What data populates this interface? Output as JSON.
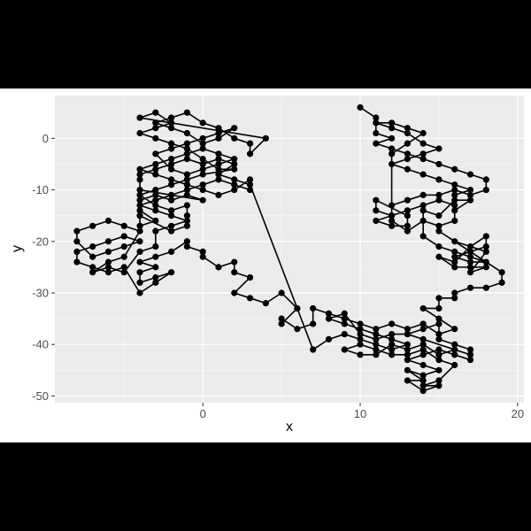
{
  "colors": {
    "panel": "#ebebeb",
    "grid_major": "#ffffff",
    "grid_minor": "#f5f5f5",
    "mark": "#000000",
    "tick_text": "#4d4d4d"
  },
  "chart_data": {
    "type": "line",
    "xlabel": "x",
    "ylabel": "y",
    "xlim": [
      -9.4,
      20.4
    ],
    "ylim": [
      -51.3,
      8.3
    ],
    "x_ticks": [
      0,
      10,
      20
    ],
    "y_ticks": [
      0,
      -10,
      -20,
      -30,
      -40,
      -50
    ],
    "x_tick_labels": [
      "0",
      "10",
      "20"
    ],
    "y_tick_labels": [
      "0",
      "-10",
      "-20",
      "-30",
      "-40",
      "-50"
    ],
    "markers": true,
    "grid": true,
    "legend": "none",
    "series": [
      {
        "values": [
          [
            10,
            6
          ],
          [
            11,
            4
          ],
          [
            11,
            1
          ],
          [
            12,
            0
          ],
          [
            11,
            -1
          ],
          [
            12,
            -2
          ],
          [
            13,
            -3
          ],
          [
            14,
            -4
          ],
          [
            15,
            -5
          ],
          [
            16,
            -6
          ],
          [
            17,
            -7
          ],
          [
            18,
            -8
          ],
          [
            18,
            -10
          ],
          [
            17,
            -11
          ],
          [
            16,
            -10
          ],
          [
            15,
            -11
          ],
          [
            14,
            -11
          ],
          [
            13,
            -12
          ],
          [
            12,
            -13
          ],
          [
            12,
            -15
          ],
          [
            11,
            -16
          ],
          [
            12,
            -17
          ],
          [
            13,
            -17
          ],
          [
            13,
            -15
          ],
          [
            11,
            -12
          ],
          [
            11,
            -14
          ],
          [
            12,
            -15
          ],
          [
            13,
            -14
          ],
          [
            14,
            -13
          ],
          [
            15,
            -12
          ],
          [
            16,
            -13
          ],
          [
            16,
            -11
          ],
          [
            17,
            -10
          ],
          [
            16,
            -9
          ],
          [
            15,
            -8
          ],
          [
            14,
            -7
          ],
          [
            13,
            -6
          ],
          [
            12,
            -5
          ],
          [
            13,
            -4
          ],
          [
            14,
            -3
          ],
          [
            15,
            -2
          ],
          [
            14,
            -1
          ],
          [
            13,
            1
          ],
          [
            12,
            2
          ],
          [
            11,
            3
          ],
          [
            12,
            3
          ],
          [
            13,
            2
          ],
          [
            14,
            1
          ],
          [
            13,
            -1
          ],
          [
            12,
            -3
          ],
          [
            12,
            -16
          ],
          [
            13,
            -18
          ],
          [
            14,
            -16
          ],
          [
            15,
            -17
          ],
          [
            16,
            -16
          ],
          [
            16,
            -14
          ],
          [
            17,
            -12
          ],
          [
            16,
            -12
          ],
          [
            15,
            -15
          ],
          [
            14,
            -14
          ],
          [
            14,
            -19
          ],
          [
            15,
            -21
          ],
          [
            16,
            -22
          ],
          [
            17,
            -23
          ],
          [
            18,
            -24
          ],
          [
            17,
            -24
          ],
          [
            16,
            -23
          ],
          [
            17,
            -22
          ],
          [
            18,
            -21
          ],
          [
            18,
            -19
          ],
          [
            17,
            -21
          ],
          [
            16,
            -24
          ],
          [
            15,
            -23
          ],
          [
            16,
            -25
          ],
          [
            17,
            -25
          ],
          [
            18,
            -25
          ],
          [
            17,
            -26
          ],
          [
            18,
            -22
          ],
          [
            16,
            -20
          ],
          [
            15,
            -18
          ],
          [
            19,
            -26
          ],
          [
            19,
            -28
          ],
          [
            18,
            -29
          ],
          [
            17,
            -29
          ],
          [
            16,
            -30
          ],
          [
            16,
            -31
          ],
          [
            15,
            -31
          ],
          [
            15,
            -33
          ],
          [
            14,
            -33
          ],
          [
            15,
            -35
          ],
          [
            16,
            -37
          ],
          [
            15,
            -38
          ],
          [
            14,
            -36
          ],
          [
            13,
            -37
          ],
          [
            12,
            -36
          ],
          [
            11,
            -37
          ],
          [
            10,
            -36
          ],
          [
            9,
            -35
          ],
          [
            8,
            -34
          ],
          [
            7,
            -33
          ],
          [
            7,
            -36
          ],
          [
            6,
            -37
          ],
          [
            5,
            -35
          ],
          [
            5,
            -36
          ],
          [
            6,
            -33
          ],
          [
            5,
            -30
          ],
          [
            4,
            -32
          ],
          [
            3,
            -31
          ],
          [
            2,
            -30
          ],
          [
            3,
            -27
          ],
          [
            2,
            -26
          ],
          [
            2,
            -24
          ],
          [
            1,
            -25
          ],
          [
            0,
            -23
          ],
          [
            0,
            -22
          ],
          [
            -1,
            -21
          ],
          [
            -1,
            -20
          ],
          [
            -2,
            -22
          ],
          [
            -3,
            -23
          ],
          [
            -4,
            -24
          ],
          [
            -3,
            -25
          ],
          [
            -4,
            -26
          ],
          [
            -4,
            -28
          ],
          [
            -3,
            -27
          ],
          [
            -2,
            -26
          ],
          [
            -3,
            -28
          ],
          [
            -4,
            -30
          ],
          [
            -5,
            -25
          ],
          [
            -6,
            -26
          ],
          [
            -7,
            -25
          ],
          [
            -8,
            -24
          ],
          [
            -8,
            -22
          ],
          [
            -7,
            -21
          ],
          [
            -6,
            -20
          ],
          [
            -5,
            -19
          ],
          [
            -4,
            -20
          ],
          [
            -5,
            -21
          ],
          [
            -6,
            -22
          ],
          [
            -7,
            -23
          ],
          [
            -8,
            -20
          ],
          [
            -8,
            -18
          ],
          [
            -7,
            -17
          ],
          [
            -6,
            -16
          ],
          [
            -5,
            -17
          ],
          [
            -4,
            -18
          ],
          [
            -5,
            -23
          ],
          [
            -6,
            -24
          ],
          [
            -7,
            -26
          ],
          [
            -6,
            -25
          ],
          [
            -5,
            -26
          ],
          [
            -4,
            -22
          ],
          [
            -3,
            -21
          ],
          [
            -3,
            -18
          ],
          [
            -2,
            -17
          ],
          [
            -1,
            -16
          ],
          [
            -2,
            -15
          ],
          [
            -3,
            -14
          ],
          [
            -4,
            -13
          ],
          [
            -3,
            -12
          ],
          [
            -2,
            -11
          ],
          [
            -1,
            -10
          ],
          [
            0,
            -9
          ],
          [
            1,
            -8
          ],
          [
            2,
            -9
          ],
          [
            3,
            -10
          ],
          [
            3,
            -8
          ],
          [
            2,
            -10
          ],
          [
            1,
            -11
          ],
          [
            0,
            -10
          ],
          [
            -1,
            -9
          ],
          [
            -2,
            -8
          ],
          [
            -3,
            -7
          ],
          [
            -4,
            -6
          ],
          [
            -3,
            -5
          ],
          [
            -2,
            -4
          ],
          [
            -1,
            -3
          ],
          [
            0,
            -2
          ],
          [
            1,
            -3
          ],
          [
            2,
            -4
          ],
          [
            1,
            -5
          ],
          [
            0,
            -6
          ],
          [
            -1,
            -7
          ],
          [
            -2,
            -6
          ],
          [
            -3,
            -3
          ],
          [
            -2,
            -2
          ],
          [
            -1,
            -1
          ],
          [
            0,
            0
          ],
          [
            1,
            1
          ],
          [
            2,
            2
          ],
          [
            1,
            0
          ],
          [
            0,
            -1
          ],
          [
            -1,
            1
          ],
          [
            -2,
            2
          ],
          [
            -3,
            3
          ],
          [
            -2,
            4
          ],
          [
            -1,
            5
          ],
          [
            0,
            3
          ],
          [
            1,
            2
          ],
          [
            2,
            0
          ],
          [
            3,
            -1
          ],
          [
            3,
            -3
          ],
          [
            4,
            0
          ],
          [
            -4,
            4
          ],
          [
            -3,
            5
          ],
          [
            -2,
            3
          ],
          [
            -3,
            2
          ],
          [
            -4,
            1
          ],
          [
            -3,
            0
          ],
          [
            -2,
            -1
          ],
          [
            -1,
            -2
          ],
          [
            0,
            -4
          ],
          [
            1,
            -6
          ],
          [
            2,
            -6
          ],
          [
            0,
            -7
          ],
          [
            -1,
            -8
          ],
          [
            -2,
            -9
          ],
          [
            -3,
            -10
          ],
          [
            -4,
            -11
          ],
          [
            -3,
            -13
          ],
          [
            -2,
            -14
          ],
          [
            -1,
            -13
          ],
          [
            -1,
            -15
          ],
          [
            -1,
            -17
          ],
          [
            -2,
            -18
          ],
          [
            -4,
            -15
          ],
          [
            -4,
            -17
          ],
          [
            -3,
            -16
          ],
          [
            -4,
            -14
          ],
          [
            -4,
            -12
          ],
          [
            -3,
            -11
          ],
          [
            -2,
            -12
          ],
          [
            -1,
            -11
          ],
          [
            0,
            -12
          ],
          [
            -4,
            -10
          ],
          [
            -4,
            -8
          ],
          [
            -4,
            -7
          ],
          [
            -3,
            -6
          ],
          [
            -2,
            -5
          ],
          [
            -1,
            -4
          ],
          [
            0,
            -5
          ],
          [
            1,
            -4
          ],
          [
            2,
            -5
          ],
          [
            1,
            -7
          ],
          [
            2,
            -8
          ],
          [
            3,
            -9
          ],
          [
            7,
            -41
          ],
          [
            8,
            -39
          ],
          [
            9,
            -38
          ],
          [
            10,
            -39
          ],
          [
            11,
            -40
          ],
          [
            12,
            -41
          ],
          [
            13,
            -40
          ],
          [
            12,
            -39
          ],
          [
            11,
            -38
          ],
          [
            10,
            -37
          ],
          [
            9,
            -36
          ],
          [
            8,
            -35
          ],
          [
            9,
            -34
          ],
          [
            10,
            -38
          ],
          [
            11,
            -39
          ],
          [
            12,
            -38
          ],
          [
            13,
            -38
          ],
          [
            14,
            -37
          ],
          [
            15,
            -36
          ],
          [
            15,
            -39
          ],
          [
            16,
            -40
          ],
          [
            17,
            -41
          ],
          [
            17,
            -43
          ],
          [
            16,
            -42
          ],
          [
            15,
            -41
          ],
          [
            14,
            -42
          ],
          [
            13,
            -43
          ],
          [
            14,
            -44
          ],
          [
            15,
            -45
          ],
          [
            14,
            -46
          ],
          [
            13,
            -45
          ],
          [
            14,
            -47
          ],
          [
            13,
            -47
          ],
          [
            14,
            -49
          ],
          [
            15,
            -48
          ],
          [
            14,
            -48
          ],
          [
            15,
            -47
          ],
          [
            16,
            -44
          ],
          [
            15,
            -43
          ],
          [
            14,
            -41
          ],
          [
            13,
            -42
          ],
          [
            12,
            -42
          ],
          [
            11,
            -41
          ],
          [
            10,
            -40
          ],
          [
            9,
            -41
          ],
          [
            10,
            -42
          ],
          [
            11,
            -42
          ],
          [
            12,
            -40
          ],
          [
            13,
            -41
          ],
          [
            14,
            -40
          ],
          [
            15,
            -42
          ],
          [
            16,
            -41
          ],
          [
            17,
            -42
          ],
          [
            14,
            -39
          ],
          [
            13,
            -38
          ]
        ]
      }
    ]
  }
}
